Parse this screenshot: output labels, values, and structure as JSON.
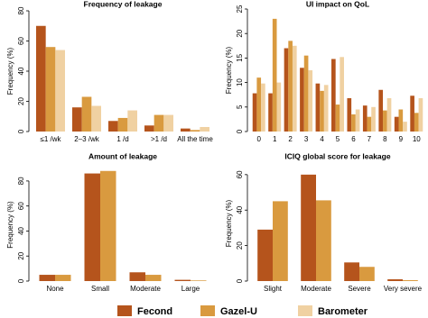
{
  "chart_data": [
    {
      "type": "bar",
      "title": "Frequency of leakage",
      "y_label": "Frequency (%)",
      "categories": [
        "≤1 /wk",
        "2–3 /wk",
        "1 /d",
        ">1 /d",
        "All the time"
      ],
      "series": [
        {
          "name": "Fecond",
          "color": "#b5541c",
          "values": [
            70,
            16,
            7,
            4,
            2
          ]
        },
        {
          "name": "Gazel-U",
          "color": "#d99a3f",
          "values": [
            56,
            23,
            9,
            11,
            1
          ]
        },
        {
          "name": "Barometer",
          "color": "#f0d1a2",
          "values": [
            54,
            17,
            14,
            11,
            3
          ]
        }
      ],
      "ylim": [
        0,
        80
      ],
      "yticks": [
        0,
        20,
        40,
        60,
        80
      ]
    },
    {
      "type": "bar",
      "title": "UI impact on QoL",
      "y_label": "Frequency (%)",
      "categories": [
        "0",
        "1",
        "2",
        "3",
        "4",
        "5",
        "6",
        "7",
        "8",
        "9",
        "10"
      ],
      "series": [
        {
          "name": "Fecond",
          "color": "#b5541c",
          "values": [
            7.8,
            7.8,
            17,
            13,
            9.8,
            14.8,
            6.8,
            5.3,
            8.5,
            3,
            7.3
          ]
        },
        {
          "name": "Gazel-U",
          "color": "#d99a3f",
          "values": [
            11,
            23,
            18.5,
            15.5,
            8.3,
            5.5,
            3.5,
            3,
            4.3,
            4.5,
            3.8
          ]
        },
        {
          "name": "Barometer",
          "color": "#f0d1a2",
          "values": [
            9.8,
            10,
            17.5,
            12.5,
            9.5,
            15.2,
            4.5,
            5,
            6.8,
            2,
            6.8
          ]
        }
      ],
      "ylim": [
        0,
        25
      ],
      "yticks": [
        0,
        5,
        10,
        15,
        20,
        25
      ]
    },
    {
      "type": "bar",
      "title": "Amount of leakage",
      "y_label": "Frequency (%)",
      "categories": [
        "None",
        "Small",
        "Moderate",
        "Large"
      ],
      "series": [
        {
          "name": "Fecond",
          "color": "#b5541c",
          "values": [
            5,
            86,
            7,
            1
          ]
        },
        {
          "name": "Gazel-U",
          "color": "#d99a3f",
          "values": [
            5,
            88,
            5,
            0.5
          ]
        }
      ],
      "ylim": [
        0,
        90
      ],
      "yticks": [
        0,
        20,
        40,
        60,
        80
      ]
    },
    {
      "type": "bar",
      "title": "ICIQ global score for leakage",
      "y_label": "Frequency (%)",
      "categories": [
        "Slight",
        "Moderate",
        "Severe",
        "Very severe"
      ],
      "series": [
        {
          "name": "Fecond",
          "color": "#b5541c",
          "values": [
            29,
            60,
            10.5,
            1
          ]
        },
        {
          "name": "Gazel-U",
          "color": "#d99a3f",
          "values": [
            45,
            45.5,
            8,
            0.5
          ]
        }
      ],
      "ylim": [
        0,
        65
      ],
      "yticks": [
        0,
        20,
        40,
        60
      ]
    }
  ]
}
